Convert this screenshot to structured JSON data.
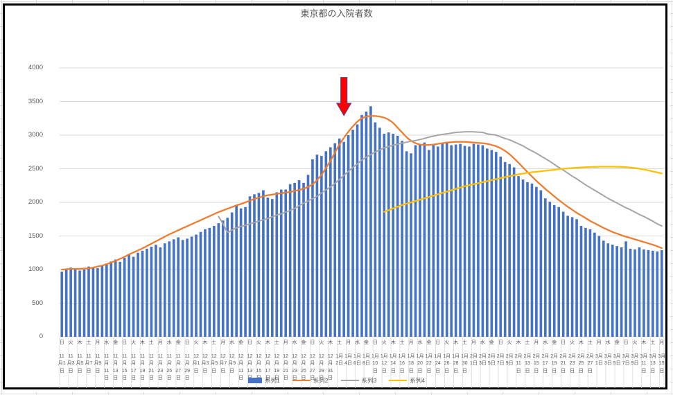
{
  "page": {
    "app": "spreadsheet-chart"
  },
  "colors": {
    "bar": "#4472C4",
    "series2": "#ED7D31",
    "series3": "#A5A5A5",
    "series4": "#FFC000",
    "gridline": "#D9D9D9",
    "axis_text": "#595959",
    "chart_border": "#000000",
    "arrow_fill": "#FF0000",
    "arrow_outline": "#3D52A8",
    "sheet_gridline": "#D9D9D9"
  },
  "chart_data": {
    "type": "combo",
    "title": "東京都の入院者数",
    "ylim": [
      0,
      4000
    ],
    "y_ticks": [
      0,
      500,
      1000,
      1500,
      2000,
      2500,
      3000,
      3500,
      4000
    ],
    "grid": "horizontal",
    "legend_position": "bottom",
    "x_label_interval": 2,
    "x_labels": [
      {
        "lines": [
          "日",
          "11",
          "月1",
          "日"
        ]
      },
      {
        "lines": [
          "火",
          "11",
          "月3",
          "日"
        ]
      },
      {
        "lines": [
          "木",
          "11",
          "月5",
          "日"
        ]
      },
      {
        "lines": [
          "土",
          "11",
          "月7",
          "日"
        ]
      },
      {
        "lines": [
          "月",
          "11",
          "月9",
          "日"
        ]
      },
      {
        "lines": [
          "水",
          "11",
          "月",
          "11",
          "日"
        ]
      },
      {
        "lines": [
          "金",
          "11",
          "月",
          "13",
          "日"
        ]
      },
      {
        "lines": [
          "日",
          "11",
          "月",
          "15",
          "日"
        ]
      },
      {
        "lines": [
          "火",
          "11",
          "月",
          "17",
          "日"
        ]
      },
      {
        "lines": [
          "木",
          "11",
          "月",
          "19",
          "日"
        ]
      },
      {
        "lines": [
          "土",
          "11",
          "月",
          "21",
          "日"
        ]
      },
      {
        "lines": [
          "月",
          "11",
          "月",
          "23",
          "日"
        ]
      },
      {
        "lines": [
          "水",
          "11",
          "月",
          "25",
          "日"
        ]
      },
      {
        "lines": [
          "金",
          "11",
          "月",
          "27",
          "日"
        ]
      },
      {
        "lines": [
          "日",
          "11",
          "月",
          "29",
          "日"
        ]
      },
      {
        "lines": [
          "火",
          "12",
          "月1",
          "日"
        ]
      },
      {
        "lines": [
          "木",
          "12",
          "月3",
          "日"
        ]
      },
      {
        "lines": [
          "土",
          "12",
          "月5",
          "日"
        ]
      },
      {
        "lines": [
          "月",
          "12",
          "月7",
          "日"
        ]
      },
      {
        "lines": [
          "水",
          "12",
          "月9",
          "日"
        ]
      },
      {
        "lines": [
          "金",
          "12",
          "月",
          "11",
          "日"
        ]
      },
      {
        "lines": [
          "日",
          "12",
          "月",
          "13",
          "日"
        ]
      },
      {
        "lines": [
          "火",
          "12",
          "月",
          "15",
          "日"
        ]
      },
      {
        "lines": [
          "木",
          "12",
          "月",
          "17",
          "日"
        ]
      },
      {
        "lines": [
          "土",
          "12",
          "月",
          "19",
          "日"
        ]
      },
      {
        "lines": [
          "月",
          "12",
          "月",
          "21",
          "日"
        ]
      },
      {
        "lines": [
          "水",
          "12",
          "月",
          "23",
          "日"
        ]
      },
      {
        "lines": [
          "金",
          "12",
          "月",
          "25",
          "日"
        ]
      },
      {
        "lines": [
          "日",
          "12",
          "月",
          "27",
          "日"
        ]
      },
      {
        "lines": [
          "火",
          "12",
          "月",
          "29",
          "日"
        ]
      },
      {
        "lines": [
          "木",
          "12",
          "月",
          "31",
          "日"
        ]
      },
      {
        "lines": [
          "土",
          "1月",
          "2日"
        ]
      },
      {
        "lines": [
          "月",
          "1月",
          "4日"
        ]
      },
      {
        "lines": [
          "水",
          "1月",
          "6日"
        ]
      },
      {
        "lines": [
          "金",
          "1月",
          "8日"
        ]
      },
      {
        "lines": [
          "日",
          "1月",
          "10",
          "日"
        ]
      },
      {
        "lines": [
          "火",
          "1月",
          "12",
          "日"
        ]
      },
      {
        "lines": [
          "木",
          "1月",
          "14",
          "日"
        ]
      },
      {
        "lines": [
          "土",
          "1月",
          "16",
          "日"
        ]
      },
      {
        "lines": [
          "月",
          "1月",
          "18",
          "日"
        ]
      },
      {
        "lines": [
          "水",
          "1月",
          "20",
          "日"
        ]
      },
      {
        "lines": [
          "金",
          "1月",
          "22",
          "日"
        ]
      },
      {
        "lines": [
          "日",
          "1月",
          "24",
          "日"
        ]
      },
      {
        "lines": [
          "火",
          "1月",
          "26",
          "日"
        ]
      },
      {
        "lines": [
          "木",
          "1月",
          "28",
          "日"
        ]
      },
      {
        "lines": [
          "土",
          "1月",
          "30",
          "日"
        ]
      },
      {
        "lines": [
          "月",
          "2月",
          "1日"
        ]
      },
      {
        "lines": [
          "水",
          "2月",
          "3日"
        ]
      },
      {
        "lines": [
          "金",
          "2月",
          "5日"
        ]
      },
      {
        "lines": [
          "日",
          "2月",
          "7日"
        ]
      },
      {
        "lines": [
          "火",
          "2月",
          "9日"
        ]
      },
      {
        "lines": [
          "木",
          "2月",
          "11",
          "日"
        ]
      },
      {
        "lines": [
          "土",
          "2月",
          "13",
          "日"
        ]
      },
      {
        "lines": [
          "月",
          "2月",
          "15",
          "日"
        ]
      },
      {
        "lines": [
          "水",
          "2月",
          "17",
          "日"
        ]
      },
      {
        "lines": [
          "金",
          "2月",
          "19",
          "日"
        ]
      },
      {
        "lines": [
          "日",
          "2月",
          "21",
          "日"
        ]
      },
      {
        "lines": [
          "火",
          "2月",
          "23",
          "日"
        ]
      },
      {
        "lines": [
          "木",
          "2月",
          "25",
          "日"
        ]
      },
      {
        "lines": [
          "土",
          "2月",
          "27",
          "日"
        ]
      },
      {
        "lines": [
          "月",
          "3月",
          "1日"
        ]
      },
      {
        "lines": [
          "水",
          "3月",
          "3日"
        ]
      },
      {
        "lines": [
          "金",
          "3月",
          "5日"
        ]
      },
      {
        "lines": [
          "日",
          "3月",
          "7日"
        ]
      },
      {
        "lines": [
          "火",
          "3月",
          "9日"
        ]
      },
      {
        "lines": [
          "木",
          "3月",
          "11",
          "日"
        ]
      },
      {
        "lines": [
          "土",
          "3月",
          "13",
          "日"
        ]
      },
      {
        "lines": [
          "月",
          "3月",
          "15",
          "日"
        ]
      }
    ],
    "series": [
      {
        "name": "系列1",
        "type": "bar",
        "color": "#4472C4",
        "start_index": 0,
        "values": [
          970,
          1005,
          1030,
          1015,
          985,
          1000,
          1045,
          1035,
          1020,
          1060,
          1090,
          1120,
          1150,
          1115,
          1175,
          1225,
          1190,
          1250,
          1280,
          1310,
          1340,
          1370,
          1330,
          1390,
          1420,
          1450,
          1480,
          1440,
          1460,
          1490,
          1520,
          1560,
          1600,
          1620,
          1650,
          1690,
          1730,
          1770,
          1850,
          1950,
          1910,
          1930,
          2090,
          2120,
          2140,
          2180,
          2070,
          2050,
          2150,
          2190,
          2190,
          2270,
          2290,
          2330,
          2290,
          2410,
          2640,
          2710,
          2690,
          2760,
          2820,
          2880,
          2950,
          2900,
          3000,
          3080,
          3160,
          3300,
          3350,
          3430,
          3190,
          3110,
          3020,
          3040,
          3020,
          2990,
          2915,
          2760,
          2730,
          2850,
          2870,
          2890,
          2780,
          2860,
          2830,
          2880,
          2890,
          2850,
          2860,
          2870,
          2840,
          2830,
          2870,
          2860,
          2850,
          2800,
          2780,
          2750,
          2680,
          2600,
          2570,
          2520,
          2390,
          2340,
          2300,
          2280,
          2230,
          2180,
          2060,
          2010,
          1960,
          1930,
          1860,
          1800,
          1780,
          1750,
          1650,
          1620,
          1600,
          1550,
          1500,
          1430,
          1390,
          1370,
          1350,
          1330,
          1420,
          1310,
          1300,
          1330,
          1300,
          1290,
          1280,
          1270,
          1290
        ]
      },
      {
        "name": "系列2",
        "type": "line",
        "color": "#ED7D31",
        "start_index": 0,
        "values": [
          1000,
          1005,
          1010,
          1010,
          1010,
          1015,
          1020,
          1030,
          1045,
          1060,
          1080,
          1105,
          1130,
          1160,
          1190,
          1225,
          1255,
          1285,
          1315,
          1350,
          1385,
          1420,
          1455,
          1490,
          1525,
          1555,
          1585,
          1615,
          1645,
          1675,
          1705,
          1735,
          1765,
          1795,
          1825,
          1855,
          1880,
          1905,
          1930,
          1955,
          1975,
          2000,
          2025,
          2050,
          2070,
          2090,
          2105,
          2115,
          2125,
          2135,
          2145,
          2155,
          2170,
          2185,
          2205,
          2230,
          2270,
          2330,
          2410,
          2510,
          2620,
          2740,
          2860,
          2960,
          3050,
          3130,
          3200,
          3250,
          3275,
          3285,
          3285,
          3275,
          3260,
          3230,
          3180,
          3110,
          3040,
          2970,
          2915,
          2880,
          2860,
          2855,
          2855,
          2860,
          2870,
          2880,
          2890,
          2895,
          2900,
          2900,
          2900,
          2895,
          2890,
          2885,
          2880,
          2870,
          2855,
          2835,
          2805,
          2765,
          2715,
          2655,
          2590,
          2520,
          2450,
          2385,
          2320,
          2260,
          2200,
          2145,
          2090,
          2035,
          1985,
          1935,
          1890,
          1845,
          1805,
          1765,
          1725,
          1690,
          1655,
          1620,
          1590,
          1560,
          1535,
          1510,
          1490,
          1470,
          1450,
          1430,
          1410,
          1390,
          1370,
          1345,
          1320
        ]
      },
      {
        "name": "系列3",
        "type": "line",
        "color": "#A5A5A5",
        "start_index": 35,
        "values": [
          1790,
          1680,
          1560,
          1590,
          1620,
          1640,
          1660,
          1680,
          1700,
          1720,
          1740,
          1760,
          1785,
          1810,
          1830,
          1855,
          1880,
          1910,
          1950,
          1985,
          2020,
          2055,
          2090,
          2140,
          2185,
          2230,
          2280,
          2340,
          2400,
          2460,
          2520,
          2570,
          2630,
          2670,
          2710,
          2750,
          2780,
          2810,
          2830,
          2850,
          2865,
          2880,
          2895,
          2910,
          2920,
          2935,
          2950,
          2970,
          2985,
          3000,
          3010,
          3020,
          3030,
          3040,
          3045,
          3050,
          3050,
          3050,
          3045,
          3040,
          3020,
          3010,
          3000,
          2975,
          2950,
          2930,
          2900,
          2870,
          2840,
          2800,
          2765,
          2730,
          2690,
          2650,
          2610,
          2565,
          2520,
          2480,
          2435,
          2390,
          2350,
          2305,
          2260,
          2220,
          2180,
          2140,
          2100,
          2060,
          2025,
          1990,
          1955,
          1920,
          1890,
          1855,
          1820,
          1790,
          1755,
          1720,
          1680,
          1650
        ]
      },
      {
        "name": "系列4",
        "type": "line",
        "color": "#FFC000",
        "start_index": 72,
        "values": [
          1860,
          1885,
          1910,
          1935,
          1960,
          1980,
          2000,
          2020,
          2040,
          2060,
          2080,
          2100,
          2120,
          2140,
          2160,
          2180,
          2200,
          2220,
          2240,
          2255,
          2270,
          2285,
          2300,
          2315,
          2330,
          2345,
          2360,
          2375,
          2390,
          2403,
          2415,
          2428,
          2440,
          2448,
          2455,
          2463,
          2470,
          2478,
          2485,
          2493,
          2500,
          2505,
          2510,
          2515,
          2520,
          2523,
          2525,
          2528,
          2530,
          2530,
          2530,
          2530,
          2530,
          2528,
          2525,
          2518,
          2510,
          2500,
          2490,
          2475,
          2460,
          2445,
          2430
        ]
      }
    ],
    "annotation": {
      "shape": "red-down-arrow",
      "x_index": 63,
      "value_top": 3860,
      "value_tip": 3290
    }
  }
}
